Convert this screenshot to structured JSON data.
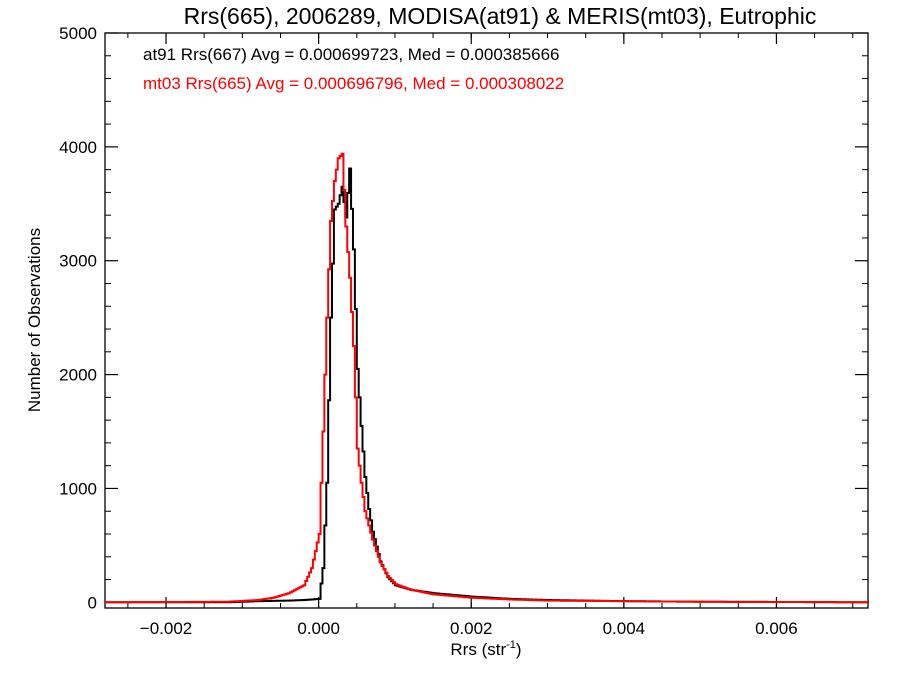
{
  "chart_data": {
    "type": "line",
    "title": "Rrs(665), 2006289, MODISA(at91) & MERIS(mt03), Eutrophic",
    "xlabel": "Rrs (str",
    "xlabel_sup": "-1",
    "xlabel_end": ")",
    "ylabel": "Number of Observations",
    "xlim": [
      -0.0028,
      0.0072
    ],
    "ylim": [
      -50,
      5000
    ],
    "xticks": [
      -0.002,
      0.0,
      0.002,
      0.004,
      0.006
    ],
    "xtick_labels": [
      "−0.002",
      "0.000",
      "0.002",
      "0.004",
      "0.006"
    ],
    "yticks": [
      0,
      1000,
      2000,
      3000,
      4000,
      5000
    ],
    "ytick_labels": [
      "0",
      "1000",
      "2000",
      "3000",
      "4000",
      "5000"
    ],
    "grid": false,
    "legend_position": "top-left",
    "series": [
      {
        "name": "at91 Rrs(667) Avg = 0.000699723, Med = 0.000385666",
        "color": "#000000",
        "x": [
          -0.0028,
          -0.0012,
          -0.0008,
          -0.0004,
          -0.0002,
          0.0,
          5e-05,
          0.0001,
          0.00015,
          0.0002,
          0.00025,
          0.0003,
          0.00035,
          0.0004,
          0.00045,
          0.0005,
          0.00055,
          0.0006,
          0.00065,
          0.0007,
          0.0008,
          0.0009,
          0.001,
          0.0012,
          0.0015,
          0.002,
          0.0025,
          0.003,
          0.004,
          0.005,
          0.006,
          0.0072
        ],
        "y": [
          0,
          0,
          10,
          15,
          20,
          30,
          300,
          1050,
          2500,
          3450,
          3500,
          3650,
          3380,
          3810,
          3100,
          2050,
          1550,
          1100,
          820,
          620,
          360,
          220,
          150,
          110,
          80,
          50,
          30,
          20,
          10,
          5,
          3,
          0
        ]
      },
      {
        "name": "mt03 Rrs(665) Avg = 0.000696796, Med = 0.000308022",
        "color": "#ff0000",
        "x": [
          -0.0028,
          -0.0012,
          -0.0008,
          -0.0006,
          -0.0004,
          -0.0002,
          -0.0001,
          0.0,
          5e-05,
          0.0001,
          0.00015,
          0.0002,
          0.00025,
          0.0003,
          0.00035,
          0.0004,
          0.00045,
          0.0005,
          0.00055,
          0.0006,
          0.0007,
          0.0008,
          0.0009,
          0.001,
          0.0012,
          0.0015,
          0.002,
          0.0025,
          0.003,
          0.004,
          0.005,
          0.006,
          0.0072
        ],
        "y": [
          0,
          5,
          20,
          40,
          80,
          150,
          300,
          600,
          1500,
          2500,
          3350,
          3700,
          3900,
          3940,
          3300,
          2850,
          2250,
          1350,
          1050,
          800,
          550,
          350,
          230,
          160,
          110,
          70,
          40,
          25,
          15,
          10,
          5,
          3,
          0
        ]
      }
    ]
  }
}
